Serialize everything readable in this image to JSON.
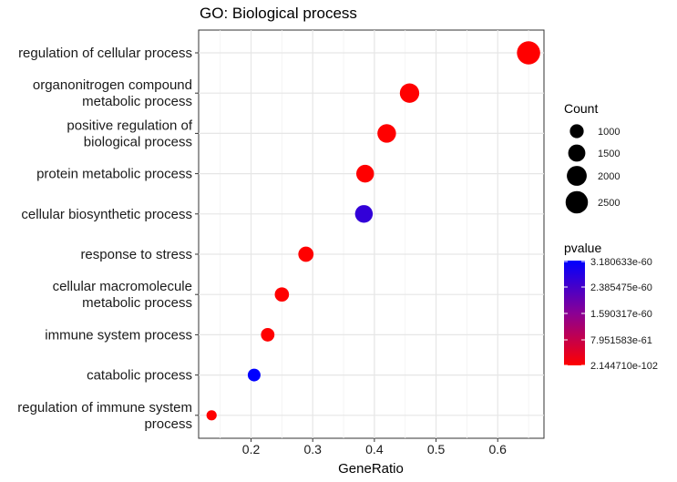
{
  "chart_data": {
    "type": "scatter",
    "title": "GO: Biological process",
    "xlabel": "GeneRatio",
    "ylabel": "",
    "xlim": [
      0.115,
      0.675
    ],
    "x_ticks": [
      "0.2",
      "0.3",
      "0.4",
      "0.5",
      "0.6"
    ],
    "grid": true,
    "categories": [
      "regulation of cellular process",
      "organonitrogen compound\nmetabolic process",
      "positive regulation of\nbiological process",
      "protein metabolic process",
      "cellular biosynthetic process",
      "response to stress",
      "cellular macromolecule\nmetabolic process",
      "immune system process",
      "catabolic process",
      "regulation of immune system\nprocess"
    ],
    "points": [
      {
        "category": "regulation of cellular process",
        "x": 0.65,
        "count": 2700,
        "pvalue": 2.14471e-102
      },
      {
        "category": "organonitrogen compound\nmetabolic process",
        "x": 0.457,
        "count": 1900,
        "pvalue": 2.14471e-102
      },
      {
        "category": "positive regulation of\nbiological process",
        "x": 0.42,
        "count": 1750,
        "pvalue": 2.14471e-102
      },
      {
        "category": "protein metabolic process",
        "x": 0.385,
        "count": 1600,
        "pvalue": 2.14471e-102
      },
      {
        "category": "cellular biosynthetic process",
        "x": 0.383,
        "count": 1600,
        "pvalue": 2.6e-60
      },
      {
        "category": "response to stress",
        "x": 0.289,
        "count": 1200,
        "pvalue": 2.14471e-102
      },
      {
        "category": "cellular macromolecule\nmetabolic process",
        "x": 0.25,
        "count": 1050,
        "pvalue": 2.14471e-102
      },
      {
        "category": "immune system process",
        "x": 0.227,
        "count": 950,
        "pvalue": 2.14471e-102
      },
      {
        "category": "catabolic process",
        "x": 0.205,
        "count": 850,
        "pvalue": 3.180633e-60
      },
      {
        "category": "regulation of immune system\nprocess",
        "x": 0.136,
        "count": 560,
        "pvalue": 2.14471e-102
      }
    ],
    "size_legend": {
      "title": "Count",
      "entries": [
        "1000",
        "1500",
        "2000",
        "2500"
      ],
      "values": [
        1000,
        1500,
        2000,
        2500
      ]
    },
    "color_legend": {
      "title": "pvalue",
      "labels": [
        "3.180633e-60",
        "2.385475e-60",
        "1.590317e-60",
        "7.951583e-61",
        "2.144710e-102"
      ],
      "high_color": "#0000ff",
      "low_color": "#ff0000"
    }
  }
}
